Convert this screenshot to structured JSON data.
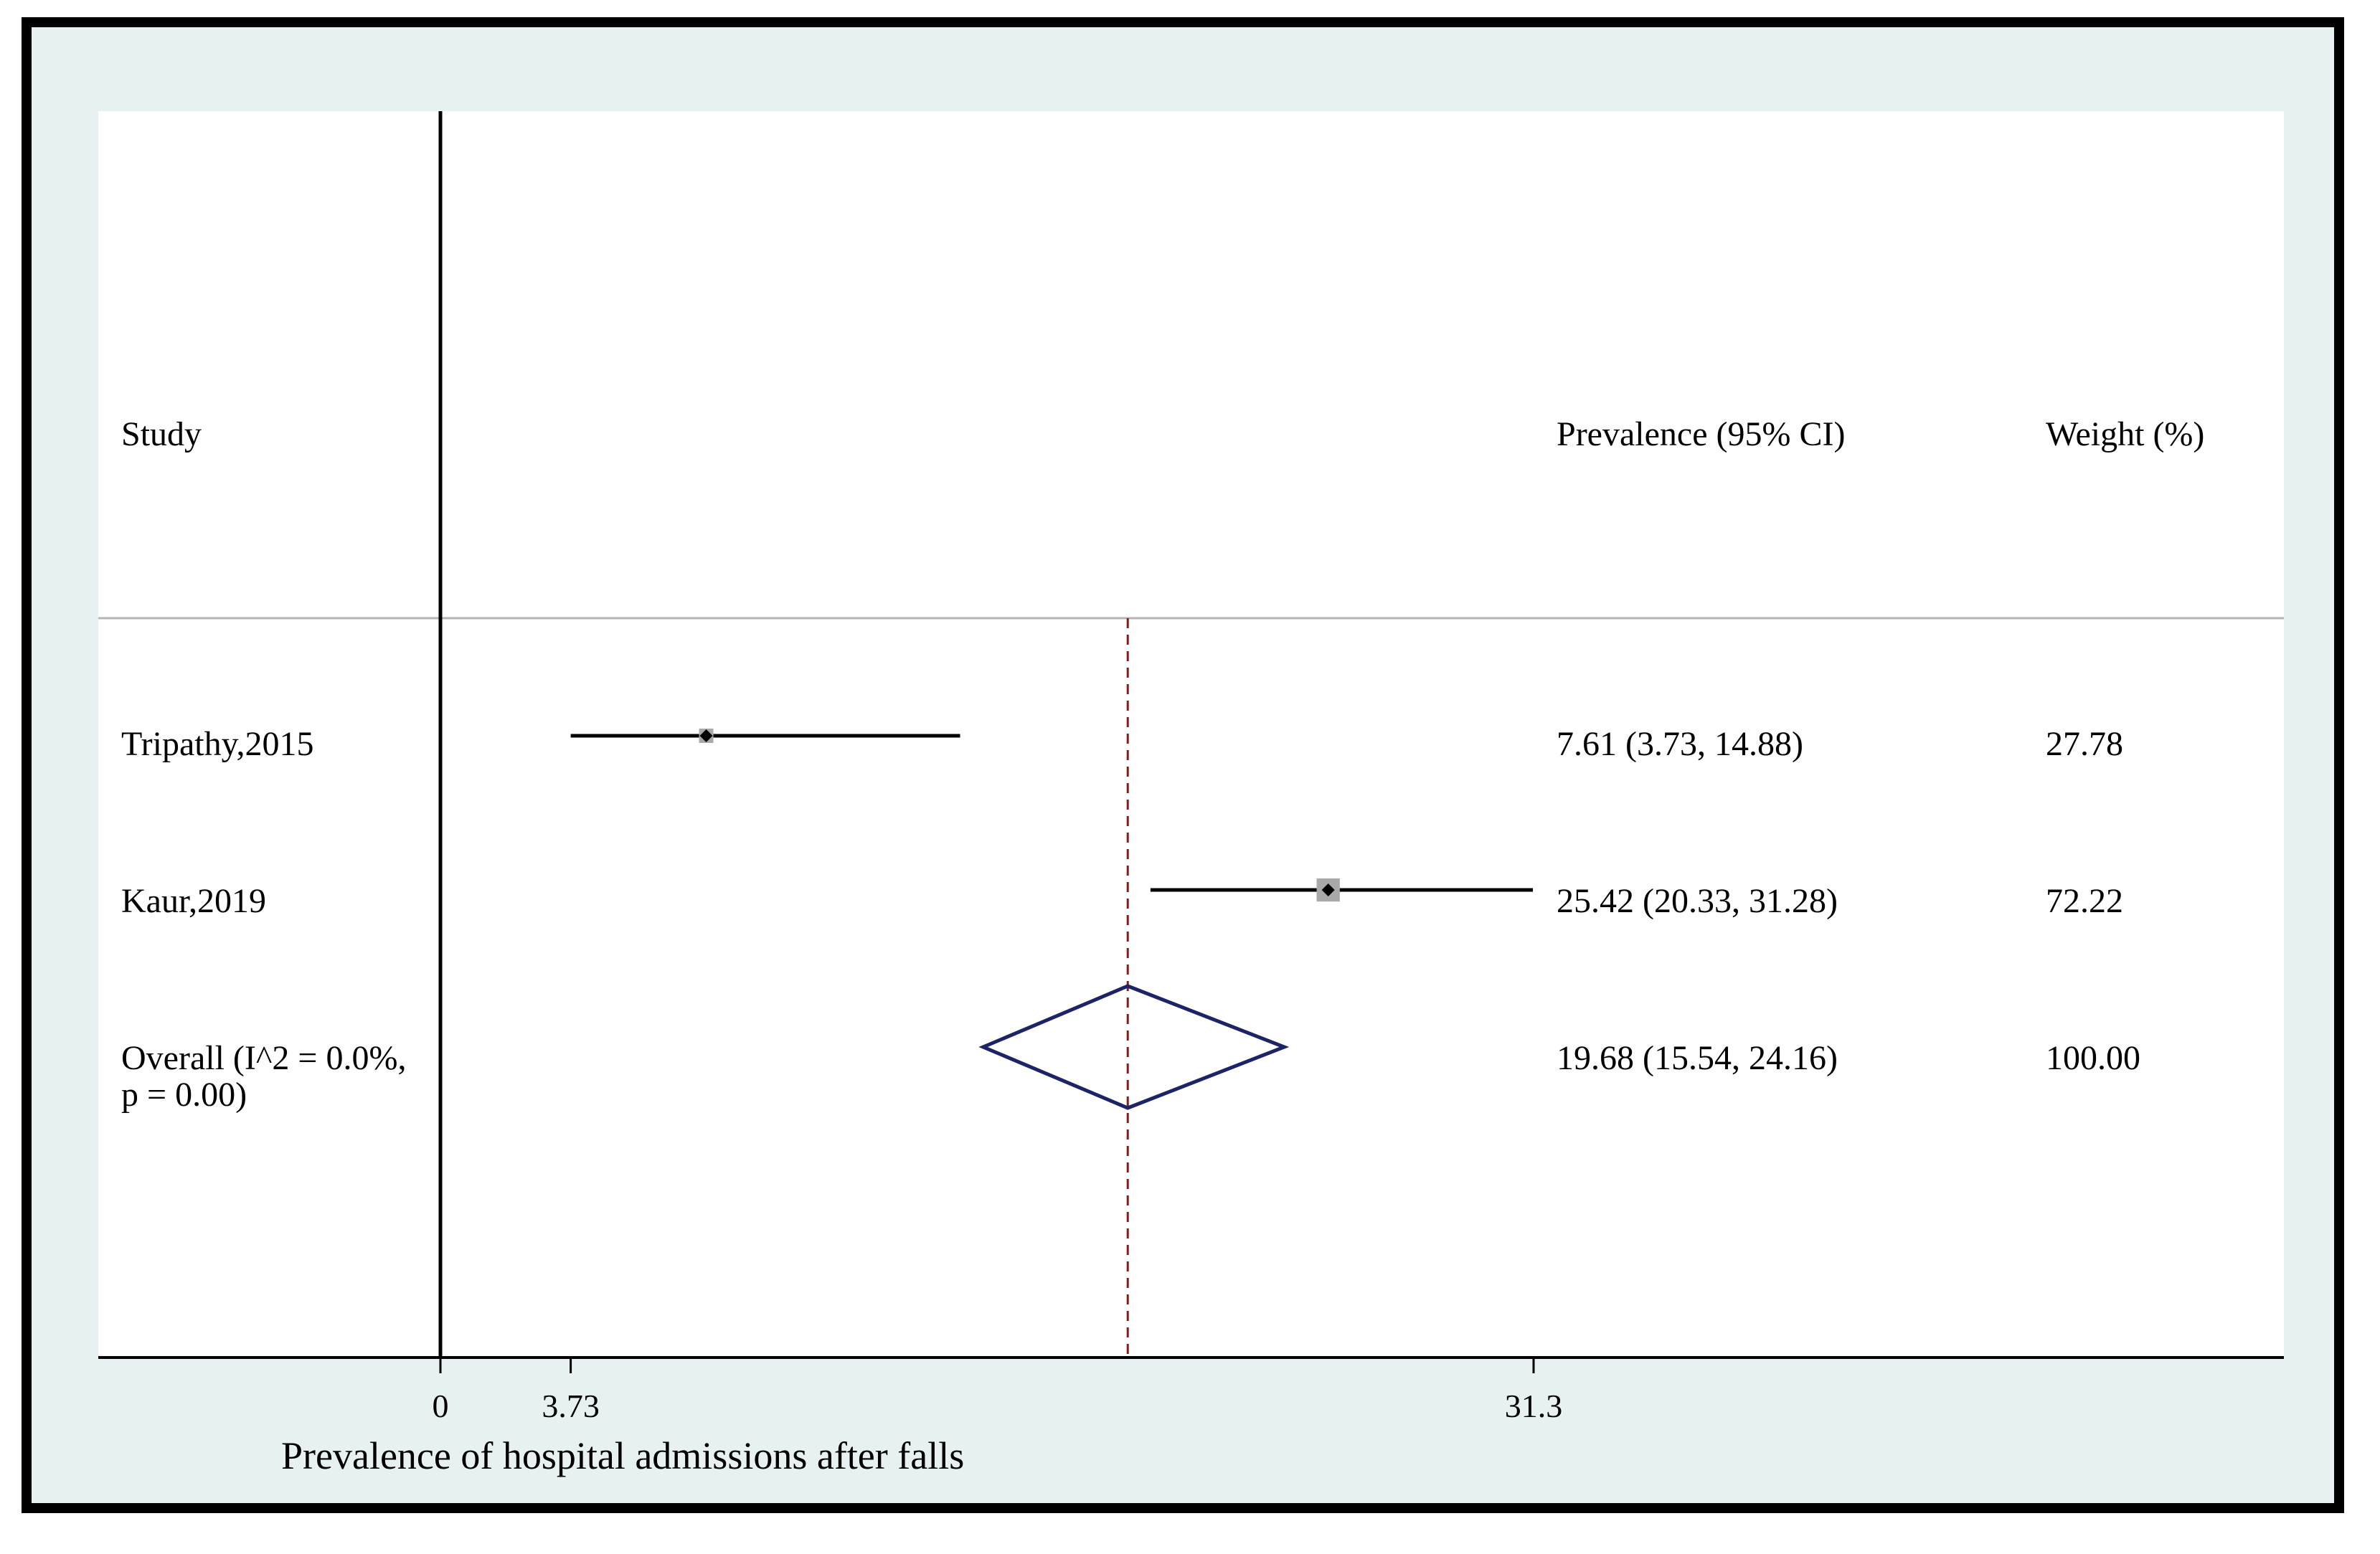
{
  "chart_data": {
    "type": "forest",
    "columns": {
      "study": "Study",
      "estimate": "Prevalence (95% CI)",
      "weight": "Weight (%)"
    },
    "studies": [
      {
        "name": "Tripathy,2015",
        "estimate": 7.61,
        "lower": 3.73,
        "upper": 14.88,
        "ci_text": "7.61 (3.73, 14.88)",
        "weight": 27.78,
        "weight_text": "27.78"
      },
      {
        "name": "Kaur,2019",
        "estimate": 25.42,
        "lower": 20.33,
        "upper": 31.28,
        "ci_text": "25.42 (20.33, 31.28)",
        "weight": 72.22,
        "weight_text": "72.22"
      }
    ],
    "overall": {
      "label_line1": "Overall (I^2 = 0.0%,",
      "label_line2": "p = 0.00)",
      "estimate": 19.68,
      "lower": 15.54,
      "upper": 24.16,
      "ci_text": "19.68 (15.54, 24.16)",
      "weight_text": "100.00"
    },
    "x_ticks": [
      {
        "value": 0,
        "label": "0"
      },
      {
        "value": 3.73,
        "label": "3.73"
      },
      {
        "value": 31.3,
        "label": "31.3"
      }
    ],
    "xlabel": "Prevalence of hospital admissions after falls",
    "null_line": 0,
    "colors": {
      "frame": "#000000",
      "panel": "#e8f1f1",
      "plot": "#ffffff",
      "ci_line": "#000000",
      "weight_box": "#a9a9a9",
      "point": "#000000",
      "diamond": "#1c2366",
      "overall_line": "#8b1a1a",
      "separator": "#b4b4b4"
    }
  }
}
